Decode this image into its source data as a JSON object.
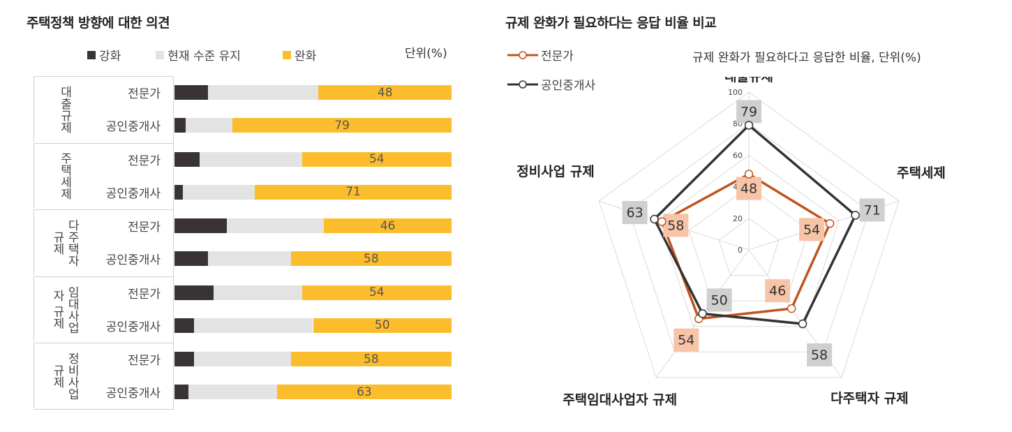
{
  "left_chart": {
    "title": "주택정책 방향에 대한 의견",
    "unit": "단위(%)",
    "legend": [
      "강화",
      "현재 수준 유지",
      "완화"
    ],
    "colors": {
      "strengthen": "#3a3333",
      "maintain": "#e4e3e3",
      "relax": "#fbbd2c"
    },
    "groups": [
      {
        "label": "대출규제",
        "rows": [
          {
            "name": "전문가",
            "strengthen": 12,
            "maintain": 40,
            "relax": 48
          },
          {
            "name": "공인중개사",
            "strengthen": 4,
            "maintain": 17,
            "relax": 79
          }
        ]
      },
      {
        "label": "주택세제",
        "rows": [
          {
            "name": "전문가",
            "strengthen": 9,
            "maintain": 37,
            "relax": 54
          },
          {
            "name": "공인중개사",
            "strengthen": 3,
            "maintain": 26,
            "relax": 71
          }
        ]
      },
      {
        "label": "다주택자 규제",
        "rows": [
          {
            "name": "전문가",
            "strengthen": 19,
            "maintain": 35,
            "relax": 46
          },
          {
            "name": "공인중개사",
            "strengthen": 12,
            "maintain": 30,
            "relax": 58
          }
        ]
      },
      {
        "label": "임대사업자 규제",
        "rows": [
          {
            "name": "전문가",
            "strengthen": 14,
            "maintain": 32,
            "relax": 54
          },
          {
            "name": "공인중개사",
            "strengthen": 7,
            "maintain": 43,
            "relax": 50
          }
        ]
      },
      {
        "label": "정비사업 규제",
        "rows": [
          {
            "name": "전문가",
            "strengthen": 7,
            "maintain": 35,
            "relax": 58
          },
          {
            "name": "공인중개사",
            "strengthen": 5,
            "maintain": 32,
            "relax": 63
          }
        ]
      }
    ]
  },
  "right_chart": {
    "title": "규제 완화가 필요하다는 응답 비율 비교",
    "subtitle": "규제 완화가 필요하다고 응답한 비율, 단위(%)",
    "legend": [
      "전문가",
      "공인중개사"
    ]
  },
  "chart_data": [
    {
      "type": "bar",
      "orientation": "horizontal-stacked-100",
      "title": "주택정책 방향에 대한 의견",
      "categories": [
        "대출규제 전문가",
        "대출규제 공인중개사",
        "주택세제 전문가",
        "주택세제 공인중개사",
        "다주택자 규제 전문가",
        "다주택자 규제 공인중개사",
        "임대사업자 규제 전문가",
        "임대사업자 규제 공인중개사",
        "정비사업 규제 전문가",
        "정비사업 규제 공인중개사"
      ],
      "series": [
        {
          "name": "강화",
          "values": [
            12,
            4,
            9,
            3,
            19,
            12,
            14,
            7,
            7,
            5
          ]
        },
        {
          "name": "현재 수준 유지",
          "values": [
            40,
            17,
            37,
            26,
            35,
            30,
            32,
            43,
            35,
            32
          ]
        },
        {
          "name": "완화",
          "values": [
            48,
            79,
            54,
            71,
            46,
            58,
            54,
            50,
            58,
            63
          ]
        }
      ],
      "unit": "단위(%)",
      "legend_position": "top"
    },
    {
      "type": "radar",
      "title": "규제 완화가 필요하다는 응답 비율 비교",
      "subtitle": "규제 완화가 필요하다고 응답한 비율, 단위(%)",
      "axes": [
        "대출규제",
        "주택세제",
        "다주택자 규제",
        "주택임대사업자 규제",
        "정비사업 규제"
      ],
      "range": [
        0,
        100
      ],
      "ticks": [
        0,
        20,
        40,
        60,
        80,
        100
      ],
      "series": [
        {
          "name": "전문가",
          "color": "#c0531e",
          "values": [
            48,
            54,
            46,
            54,
            58
          ]
        },
        {
          "name": "공인중개사",
          "color": "#333333",
          "values": [
            79,
            71,
            58,
            50,
            63
          ]
        }
      ],
      "legend_position": "top-left"
    }
  ]
}
